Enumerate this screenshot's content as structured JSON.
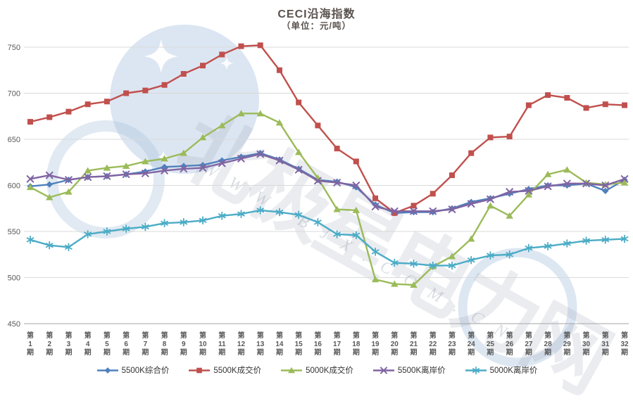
{
  "title": "CECI沿海指数",
  "subtitle": "（单位：元/吨）",
  "watermark": {
    "site_text": "北极星电力网",
    "url_text": "W W W . B J X . C O M . C N"
  },
  "chart_data": {
    "type": "line",
    "title": "CECI沿海指数",
    "subtitle": "（单位：元/吨）",
    "x_prefix": "第",
    "x_suffix": "期",
    "categories": [
      1,
      2,
      3,
      4,
      5,
      6,
      7,
      8,
      9,
      10,
      11,
      12,
      13,
      14,
      15,
      16,
      17,
      18,
      19,
      20,
      21,
      22,
      23,
      24,
      25,
      26,
      27,
      28,
      29,
      30,
      31,
      32
    ],
    "ylim": [
      450,
      750
    ],
    "y_ticks": [
      450,
      500,
      550,
      600,
      650,
      700,
      750
    ],
    "grid": true,
    "legend_position": "bottom",
    "series": [
      {
        "name": "5500K综合价",
        "color": "#4F81BD",
        "marker": "diamond",
        "values": [
          599,
          601,
          606,
          609,
          610,
          612,
          615,
          620,
          621,
          622,
          627,
          631,
          635,
          628,
          618,
          606,
          604,
          598,
          579,
          570,
          571,
          571,
          575,
          582,
          586,
          591,
          596,
          600,
          600,
          602,
          594,
          606
        ]
      },
      {
        "name": "5500K成交价",
        "color": "#C0504D",
        "marker": "square",
        "values": [
          669,
          674,
          680,
          688,
          691,
          700,
          703,
          709,
          721,
          730,
          742,
          751,
          752,
          725,
          690,
          665,
          640,
          626,
          586,
          570,
          578,
          591,
          611,
          635,
          652,
          653,
          687,
          698,
          695,
          684,
          688,
          687
        ]
      },
      {
        "name": "5000K成交价",
        "color": "#9BBB59",
        "marker": "triangle",
        "values": [
          598,
          587,
          593,
          616,
          619,
          621,
          626,
          629,
          635,
          652,
          665,
          678,
          678,
          668,
          636,
          608,
          574,
          573,
          498,
          493,
          492,
          512,
          523,
          542,
          578,
          567,
          590,
          612,
          617,
          603,
          601,
          603
        ]
      },
      {
        "name": "5500K离岸价",
        "color": "#8064A2",
        "marker": "x",
        "values": [
          607,
          611,
          606,
          609,
          610,
          612,
          613,
          616,
          618,
          619,
          624,
          629,
          634,
          627,
          617,
          605,
          603,
          600,
          577,
          572,
          572,
          572,
          574,
          580,
          585,
          593,
          594,
          599,
          602,
          602,
          600,
          607
        ]
      },
      {
        "name": "5000K离岸价",
        "color": "#4BACC6",
        "marker": "asterisk",
        "values": [
          541,
          535,
          533,
          547,
          550,
          553,
          555,
          559,
          560,
          562,
          567,
          569,
          573,
          571,
          568,
          560,
          547,
          546,
          528,
          516,
          515,
          513,
          513,
          519,
          524,
          525,
          532,
          534,
          537,
          540,
          541,
          542
        ]
      }
    ]
  }
}
